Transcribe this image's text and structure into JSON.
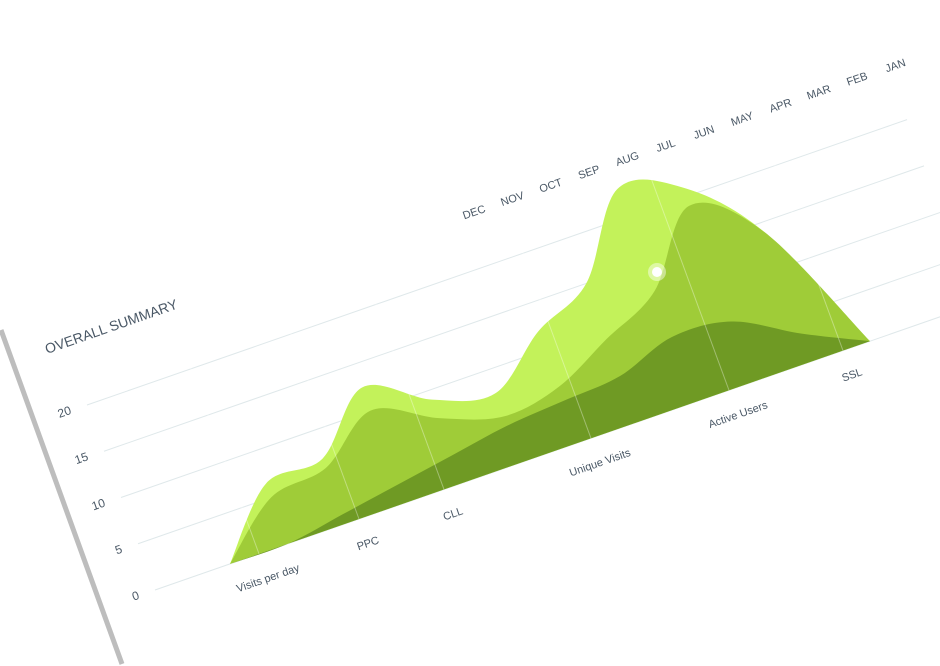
{
  "chart_data": {
    "type": "area",
    "title": "OVERALL SUMMARY",
    "categories": [
      "DEC",
      "NOV",
      "OCT",
      "SEP",
      "AUG",
      "JUL",
      "JUN",
      "MAY",
      "APR",
      "MAR",
      "FEB",
      "JAN"
    ],
    "highlight": "DEC",
    "x_labels": [
      "Visits per day",
      "PPC",
      "CLL",
      "Unique Visits",
      "Active Users",
      "SSL"
    ],
    "x_label_highlight": "Active Users",
    "series": [
      {
        "color": "#c3f25a",
        "values": [
          0,
          6.5,
          7,
          12.5,
          9,
          7.5,
          12,
          15,
          23,
          21,
          14,
          0
        ]
      },
      {
        "color": "#9fcc38",
        "values": [
          0,
          5,
          6,
          10,
          7,
          5,
          6,
          9,
          12,
          19,
          14,
          0
        ]
      },
      {
        "color": "#6f9a24",
        "values": [
          0,
          0,
          1,
          2,
          3,
          4,
          4.5,
          5,
          7,
          6.5,
          3,
          0
        ]
      }
    ],
    "ylim": [
      0,
      20
    ],
    "yticks": [
      0,
      5,
      10,
      15,
      20
    ],
    "grid": true
  }
}
